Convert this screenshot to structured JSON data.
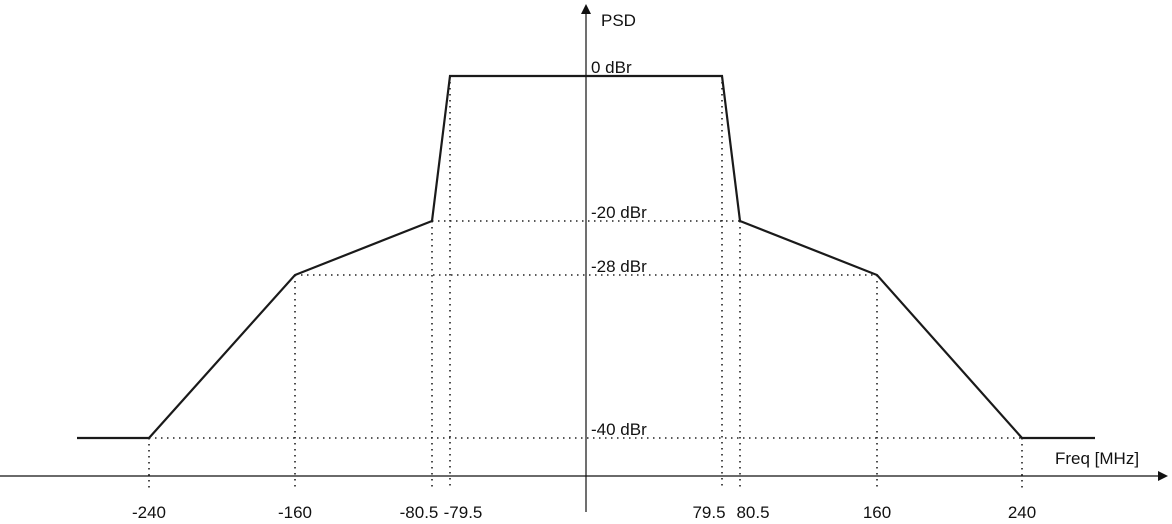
{
  "chart_data": {
    "type": "line",
    "title": "",
    "xlabel": "Freq [MHz]",
    "ylabel": "PSD",
    "x": [
      -290,
      -240,
      -160,
      -80.5,
      -79.5,
      79.5,
      80.5,
      160,
      240,
      290
    ],
    "y": [
      -40,
      -40,
      -28,
      -20,
      0,
      0,
      -20,
      -28,
      -40,
      -40
    ],
    "xlim": [
      -300,
      300
    ],
    "ylim": [
      -42,
      0
    ],
    "x_ticks": [
      "-240",
      "-160",
      "-80.5",
      "-79.5",
      "79.5",
      "80.5",
      "160",
      "240"
    ],
    "x_tick_values": [
      -240,
      -160,
      -80.5,
      -79.5,
      79.5,
      80.5,
      160,
      240
    ],
    "y_levels": [
      {
        "value": 0,
        "label": "0 dBr"
      },
      {
        "value": -20,
        "label": "-20 dBr"
      },
      {
        "value": -28,
        "label": "-28 dBr"
      },
      {
        "value": -40,
        "label": "-40 dBr"
      }
    ]
  }
}
